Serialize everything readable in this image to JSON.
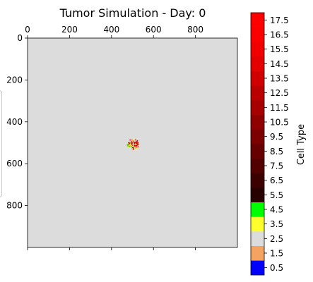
{
  "chart_data": {
    "type": "heatmap",
    "title": "Tumor Simulation - Day: 0",
    "xlabel": "",
    "ylabel": "",
    "xlim": [
      0,
      1000
    ],
    "ylim": [
      1000,
      0
    ],
    "x_ticks": [
      0,
      200,
      400,
      600,
      800
    ],
    "y_ticks": [
      0,
      200,
      400,
      600,
      800
    ],
    "x_tick_labels": [
      "0",
      "200",
      "400",
      "600",
      "800"
    ],
    "y_tick_labels": [
      "0",
      "200",
      "400",
      "600",
      "800"
    ],
    "grid": false,
    "background_value": 2.5,
    "tumor_cluster": {
      "center_x": 500,
      "center_y": 505,
      "radius": 28
    },
    "colorbar": {
      "label": "Cell Type",
      "range": [
        0,
        18
      ],
      "tick_values": [
        0.5,
        1.5,
        2.5,
        3.5,
        4.5,
        5.5,
        6.5,
        7.5,
        8.5,
        9.5,
        10.5,
        11.5,
        12.5,
        13.5,
        14.5,
        15.5,
        16.5,
        17.5
      ],
      "tick_labels": [
        "0.5",
        "1.5",
        "2.5",
        "3.5",
        "4.5",
        "5.5",
        "6.5",
        "7.5",
        "8.5",
        "9.5",
        "10.5",
        "11.5",
        "12.5",
        "13.5",
        "14.5",
        "15.5",
        "16.5",
        "17.5"
      ],
      "colors": [
        "#0000ff",
        "#f4a460",
        "#dcdcdc",
        "#ffff2e",
        "#00ff00",
        "#280000",
        "#3d0000",
        "#520000",
        "#670000",
        "#7c0000",
        "#910000",
        "#a60000",
        "#bb0000",
        "#d00000",
        "#e50000",
        "#f20000",
        "#fa0000",
        "#ff0000"
      ]
    }
  }
}
